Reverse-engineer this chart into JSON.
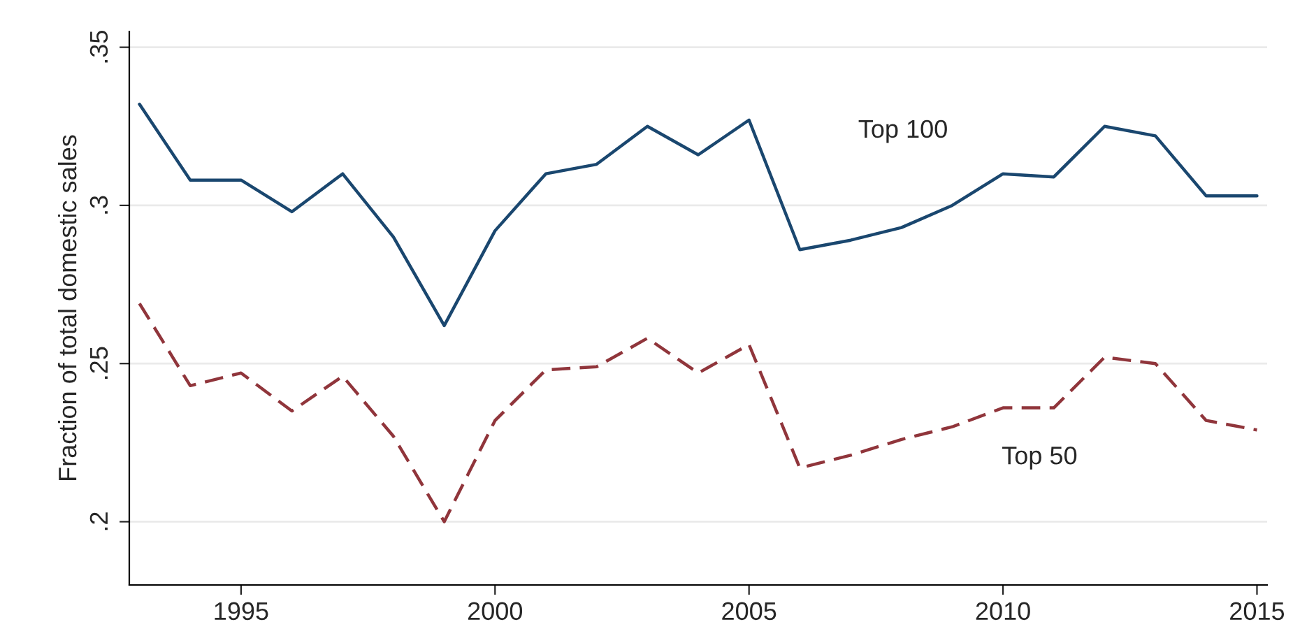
{
  "chart_data": {
    "type": "line",
    "ylabel": "Fraction of total domestic sales",
    "x": [
      1993,
      1994,
      1995,
      1996,
      1997,
      1998,
      1999,
      2000,
      2001,
      2002,
      2003,
      2004,
      2005,
      2006,
      2007,
      2008,
      2009,
      2010,
      2011,
      2012,
      2013,
      2014,
      2015
    ],
    "series": [
      {
        "name": "Top 100",
        "color": "#1a476f",
        "line_style": "solid",
        "values": [
          0.332,
          0.308,
          0.308,
          0.298,
          0.31,
          0.29,
          0.262,
          0.292,
          0.31,
          0.313,
          0.325,
          0.316,
          0.327,
          0.286,
          0.289,
          0.293,
          0.3,
          0.31,
          0.309,
          0.325,
          0.322,
          0.303,
          0.303
        ]
      },
      {
        "name": "Top 50",
        "color": "#90353b",
        "line_style": "dashed",
        "values": [
          0.269,
          0.243,
          0.247,
          0.235,
          0.246,
          0.227,
          0.2,
          0.232,
          0.248,
          0.249,
          0.258,
          0.247,
          0.256,
          0.217,
          0.221,
          0.226,
          0.23,
          0.236,
          0.236,
          0.252,
          0.25,
          0.232,
          0.229
        ]
      }
    ],
    "xlim": [
      1992.8,
      2015.2
    ],
    "xticks": [
      1995,
      2000,
      2005,
      2010,
      2015
    ],
    "ylim": [
      0.18,
      0.355
    ],
    "yticks": [
      {
        "value": 0.2,
        "label": ".2"
      },
      {
        "value": 0.25,
        "label": ".25"
      },
      {
        "value": 0.3,
        "label": ".3"
      },
      {
        "value": 0.35,
        "label": ".35"
      }
    ],
    "grid": "y",
    "legend": false,
    "marker": "none"
  }
}
